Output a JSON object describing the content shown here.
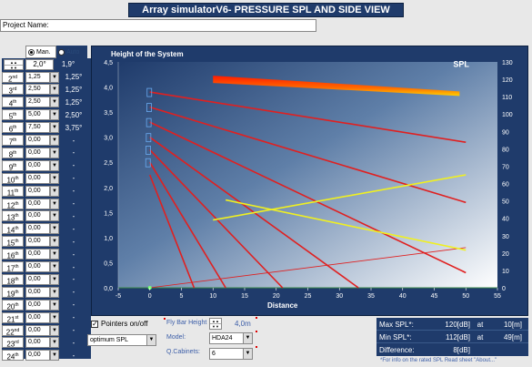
{
  "title": "Array simulatorV6- PRESSURE SPL AND SIDE VIEW",
  "project_label": "Project Name:",
  "mode": {
    "manual_label": "Man.",
    "auto_label": "Auto"
  },
  "first_cabinet": {
    "angle_value": "2,0°",
    "computed": "1,9°"
  },
  "cabinets": [
    {
      "n": "2",
      "sel": "1,25",
      "computed": "1,25°"
    },
    {
      "n": "3",
      "sel": "2,50",
      "computed": "1,25°"
    },
    {
      "n": "4",
      "sel": "2,50",
      "computed": "1,25°"
    },
    {
      "n": "5",
      "sel": "5,00",
      "computed": "2,50°"
    },
    {
      "n": "6",
      "sel": "7,50",
      "computed": "3,75°"
    },
    {
      "n": "7",
      "sel": "0,00",
      "computed": "-"
    },
    {
      "n": "8",
      "sel": "0,00",
      "computed": "-"
    },
    {
      "n": "9",
      "sel": "0,00",
      "computed": "-"
    },
    {
      "n": "10",
      "sel": "0,00",
      "computed": "-"
    },
    {
      "n": "11",
      "sel": "0,00",
      "computed": "-"
    },
    {
      "n": "12",
      "sel": "0,00",
      "computed": "-"
    },
    {
      "n": "13",
      "sel": "0,00",
      "computed": "-"
    },
    {
      "n": "14",
      "sel": "0,00",
      "computed": "-"
    },
    {
      "n": "15",
      "sel": "0,00",
      "computed": "-"
    },
    {
      "n": "16",
      "sel": "0,00",
      "computed": "-"
    },
    {
      "n": "17",
      "sel": "0,00",
      "computed": "-"
    },
    {
      "n": "18",
      "sel": "0,00",
      "computed": "-"
    },
    {
      "n": "19",
      "sel": "0,00",
      "computed": "-"
    },
    {
      "n": "20",
      "sel": "0,00",
      "computed": "-"
    },
    {
      "n": "21",
      "sel": "0,00",
      "computed": "-"
    },
    {
      "n": "22",
      "sel": "0,00",
      "computed": "-"
    },
    {
      "n": "23",
      "sel": "0,00",
      "computed": "-"
    },
    {
      "n": "24",
      "sel": "0,00",
      "computed": "-"
    }
  ],
  "chart": {
    "title": "Height of the System",
    "spl_label": "SPL",
    "x_label": "Distance",
    "x_ticks": [
      "-5",
      "0",
      "5",
      "10",
      "15",
      "20",
      "25",
      "30",
      "35",
      "40",
      "45",
      "50",
      "55"
    ],
    "y_left_ticks": [
      "4,5",
      "4,0",
      "3,5",
      "3,0",
      "2,5",
      "2,0",
      "1,5",
      "1,0",
      "0,5",
      "0,0"
    ],
    "y_right_ticks": [
      "130",
      "120",
      "110",
      "100",
      "90",
      "80",
      "70",
      "60",
      "50",
      "40",
      "30",
      "20",
      "10",
      "0"
    ],
    "colors": {
      "red": "#e02020",
      "yellow": "#f0f020",
      "bg_top": "#1f3b6b",
      "bg_bottom": "#ffffff"
    }
  },
  "chart_data": {
    "type": "line",
    "x_range": [
      -5,
      55
    ],
    "y_left_range": [
      0,
      4.5
    ],
    "y_right_range": [
      0,
      130
    ],
    "rays": [
      {
        "from": [
          0,
          3.9
        ],
        "to": [
          50,
          2.9
        ]
      },
      {
        "from": [
          0,
          3.6
        ],
        "to": [
          50,
          1.7
        ]
      },
      {
        "from": [
          0,
          3.3
        ],
        "to": [
          50,
          0.3
        ]
      },
      {
        "from": [
          0,
          3.0
        ],
        "to": [
          33,
          0.0
        ]
      },
      {
        "from": [
          0,
          2.75
        ],
        "to": [
          21,
          0.0
        ]
      },
      {
        "from": [
          0,
          2.5
        ],
        "to": [
          12,
          0.0
        ]
      },
      {
        "from": [
          0,
          2.25
        ],
        "to": [
          7,
          0.0
        ]
      }
    ],
    "floor_line": {
      "from": [
        0,
        0.0
      ],
      "to": [
        50,
        0.8
      ]
    },
    "yellow_lines": [
      {
        "from": [
          10,
          1.35
        ],
        "to": [
          50,
          2.25
        ]
      },
      {
        "from": [
          12,
          1.75
        ],
        "to": [
          50,
          0.75
        ]
      }
    ],
    "spl_band": {
      "x": [
        10,
        49
      ],
      "spl_start": 120,
      "spl_end": 112
    }
  },
  "bottom": {
    "pointers_label": "Pointers on/off",
    "pointers_checked": true,
    "combo_spl": "optimum SPL",
    "fly_bar_label": "Fly Bar Height",
    "fly_bar_value": "4,0m",
    "model_label": "Model:",
    "model_value": "HDA24",
    "qcab_label": "Q.Cabinets:",
    "qcab_value": "6"
  },
  "stats": {
    "max_label": "Max SPL*:",
    "max_value": "120[dB]",
    "max_at": "at",
    "max_dist": "10[m]",
    "min_label": "Min SPL*:",
    "min_value": "112[dB]",
    "min_at": "at",
    "min_dist": "49[m]",
    "diff_label": "Difference:",
    "diff_value": "8[dB]"
  },
  "note": "*For info on the rated SPL Read  sheet \"About...\""
}
